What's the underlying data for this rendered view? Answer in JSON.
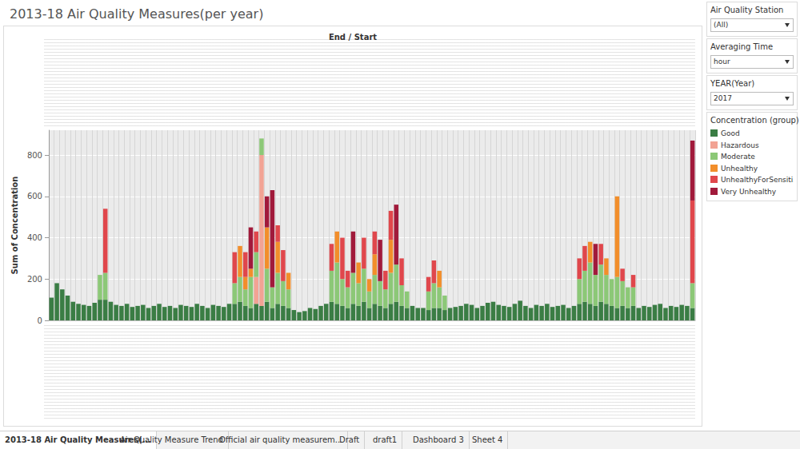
{
  "chart_data": {
    "type": "bar",
    "title": "2013-18 Air Quality Measures(per year)",
    "xlabel": "End / Start",
    "ylabel": "Sum of Concentration",
    "categories": [
      null,
      null,
      null,
      null,
      null,
      null,
      null,
      null,
      null,
      null,
      null,
      null,
      null,
      null,
      null,
      null,
      null,
      null,
      null,
      null,
      null,
      null,
      null,
      null,
      null,
      null,
      null,
      null,
      null,
      null,
      null,
      null,
      null,
      null,
      null,
      null,
      null,
      null,
      null,
      null,
      null,
      null,
      null,
      null,
      null,
      null,
      null,
      null,
      null,
      null,
      null,
      null,
      null,
      null,
      null,
      null,
      null,
      null,
      null,
      null,
      null,
      null,
      null,
      null,
      null,
      null,
      null,
      null,
      null,
      null,
      null,
      null,
      null,
      null,
      null,
      null,
      null,
      null,
      null,
      null,
      null,
      null,
      null,
      null,
      null,
      null,
      null,
      null,
      null,
      null,
      null,
      null,
      null,
      null,
      null,
      null,
      null,
      null,
      null,
      null,
      null,
      null,
      null,
      null,
      null,
      null,
      null,
      null,
      null,
      null,
      null,
      null,
      null,
      null,
      null,
      null,
      null,
      null,
      null,
      null
    ],
    "series": [
      {
        "name": "Good",
        "color": "#3a7d44",
        "values": [
          110,
          180,
          150,
          120,
          90,
          80,
          75,
          70,
          85,
          100,
          100,
          90,
          75,
          70,
          80,
          65,
          70,
          75,
          60,
          70,
          80,
          65,
          70,
          60,
          75,
          70,
          65,
          80,
          70,
          60,
          75,
          70,
          65,
          80,
          80,
          90,
          70,
          60,
          80,
          70,
          90,
          60,
          80,
          70,
          60,
          50,
          40,
          45,
          60,
          55,
          70,
          80,
          90,
          80,
          70,
          60,
          80,
          70,
          90,
          60,
          80,
          70,
          60,
          80,
          90,
          70,
          60,
          70,
          60,
          60,
          50,
          60,
          60,
          50,
          60,
          65,
          70,
          80,
          75,
          60,
          70,
          85,
          90,
          75,
          70,
          65,
          80,
          95,
          70,
          60,
          75,
          70,
          80,
          65,
          70,
          75,
          60,
          70,
          80,
          90,
          80,
          70,
          90,
          80,
          70,
          60,
          70,
          60,
          70,
          60,
          70,
          65,
          75,
          80,
          60,
          70,
          65,
          75,
          70,
          60
        ]
      },
      {
        "name": "Hazardous",
        "color": "#f2a394",
        "values": [
          null,
          null,
          null,
          null,
          null,
          null,
          null,
          null,
          null,
          null,
          null,
          null,
          null,
          null,
          null,
          null,
          null,
          null,
          null,
          null,
          null,
          null,
          null,
          null,
          null,
          null,
          null,
          null,
          null,
          null,
          null,
          null,
          null,
          null,
          null,
          null,
          null,
          null,
          130,
          730,
          null,
          null,
          null,
          null,
          null,
          null,
          null,
          null,
          null,
          null,
          null,
          null,
          null,
          null,
          null,
          null,
          null,
          null,
          null,
          null,
          null,
          null,
          null,
          null,
          null,
          null,
          null,
          null,
          null,
          null,
          null,
          null,
          null,
          null,
          null,
          null,
          null,
          null,
          null,
          null,
          null,
          null,
          null,
          null,
          null,
          null,
          null,
          null,
          null,
          null,
          null,
          null,
          null,
          null,
          null,
          null,
          null,
          null,
          null,
          null,
          null,
          null,
          null,
          null,
          null,
          null,
          null,
          null,
          null,
          null,
          null,
          null,
          null,
          null,
          null,
          null,
          null,
          null,
          null,
          null
        ]
      },
      {
        "name": "Moderate",
        "color": "#8cc877",
        "values": [
          null,
          null,
          null,
          null,
          null,
          null,
          null,
          null,
          null,
          120,
          130,
          null,
          null,
          null,
          null,
          null,
          null,
          null,
          null,
          null,
          null,
          null,
          null,
          null,
          null,
          null,
          null,
          null,
          null,
          null,
          null,
          null,
          null,
          null,
          100,
          120,
          80,
          150,
          120,
          80,
          160,
          100,
          150,
          120,
          90,
          null,
          null,
          null,
          null,
          null,
          null,
          null,
          150,
          200,
          130,
          100,
          150,
          110,
          160,
          80,
          140,
          120,
          90,
          150,
          180,
          100,
          80,
          null,
          null,
          null,
          90,
          120,
          100,
          70,
          null,
          null,
          null,
          null,
          null,
          null,
          null,
          null,
          null,
          null,
          null,
          null,
          null,
          null,
          null,
          null,
          null,
          null,
          null,
          null,
          null,
          null,
          null,
          null,
          120,
          150,
          200,
          150,
          180,
          140,
          130,
          150,
          120,
          100,
          90,
          null,
          null,
          null,
          null,
          null,
          null,
          null,
          null,
          null,
          null,
          120
        ]
      },
      {
        "name": "Unhealthy",
        "color": "#f28e2b",
        "values": [
          null,
          null,
          null,
          null,
          null,
          null,
          null,
          null,
          null,
          null,
          null,
          null,
          null,
          null,
          null,
          null,
          null,
          null,
          null,
          null,
          null,
          null,
          null,
          null,
          null,
          null,
          null,
          null,
          null,
          null,
          null,
          null,
          null,
          null,
          null,
          150,
          60,
          40,
          null,
          null,
          200,
          null,
          150,
          null,
          80,
          null,
          null,
          null,
          null,
          null,
          null,
          null,
          null,
          150,
          null,
          null,
          null,
          100,
          null,
          60,
          100,
          null,
          null,
          160,
          null,
          null,
          null,
          null,
          null,
          null,
          null,
          null,
          80,
          null,
          null,
          null,
          null,
          null,
          null,
          null,
          null,
          null,
          null,
          null,
          null,
          null,
          null,
          null,
          null,
          null,
          null,
          null,
          null,
          null,
          null,
          null,
          null,
          null,
          null,
          null,
          100,
          null,
          null,
          80,
          null,
          390,
          null,
          null,
          null,
          null,
          null,
          null,
          null,
          null,
          null,
          null,
          null,
          null,
          null,
          null
        ]
      },
      {
        "name": "UnhealthyForSensiti...",
        "color": "#e0474c",
        "values": [
          null,
          null,
          null,
          null,
          null,
          null,
          null,
          null,
          null,
          null,
          310,
          null,
          null,
          null,
          null,
          null,
          null,
          null,
          null,
          null,
          null,
          null,
          null,
          null,
          null,
          null,
          null,
          null,
          null,
          null,
          null,
          null,
          null,
          null,
          150,
          null,
          120,
          null,
          100,
          null,
          null,
          null,
          80,
          150,
          null,
          null,
          null,
          null,
          null,
          null,
          null,
          null,
          130,
          null,
          200,
          80,
          null,
          null,
          150,
          null,
          110,
          null,
          90,
          140,
          null,
          130,
          null,
          null,
          null,
          null,
          70,
          110,
          null,
          null,
          null,
          null,
          null,
          null,
          null,
          null,
          null,
          null,
          null,
          null,
          null,
          null,
          null,
          null,
          null,
          null,
          null,
          null,
          null,
          null,
          null,
          null,
          null,
          null,
          100,
          120,
          null,
          null,
          100,
          null,
          null,
          null,
          60,
          null,
          60,
          null,
          null,
          null,
          null,
          null,
          null,
          null,
          null,
          null,
          null,
          400
        ]
      },
      {
        "name": "Very Unhealthy",
        "color": "#a11a3b",
        "values": [
          null,
          null,
          null,
          null,
          null,
          null,
          null,
          null,
          null,
          null,
          null,
          null,
          null,
          null,
          null,
          null,
          null,
          null,
          null,
          null,
          null,
          null,
          null,
          null,
          null,
          null,
          null,
          null,
          null,
          null,
          null,
          null,
          null,
          null,
          null,
          null,
          null,
          200,
          null,
          null,
          150,
          470,
          null,
          null,
          null,
          null,
          null,
          null,
          null,
          null,
          null,
          null,
          null,
          null,
          null,
          null,
          200,
          null,
          null,
          null,
          null,
          200,
          null,
          null,
          290,
          null,
          null,
          null,
          null,
          null,
          null,
          null,
          null,
          null,
          null,
          null,
          null,
          null,
          null,
          null,
          null,
          null,
          null,
          null,
          null,
          null,
          null,
          null,
          null,
          null,
          null,
          null,
          null,
          null,
          null,
          null,
          null,
          null,
          null,
          null,
          null,
          150,
          null,
          null,
          null,
          null,
          null,
          null,
          null,
          null,
          null,
          null,
          null,
          null,
          null,
          null,
          null,
          null,
          null,
          290
        ]
      }
    ],
    "ylim": [
      0,
      920
    ],
    "yticks": [
      0,
      200,
      400,
      600,
      800
    ],
    "grid": true,
    "stacked": true,
    "legend": "right"
  },
  "panel": {
    "filters": [
      {
        "label": "Air Quality Station",
        "value": "(All)"
      },
      {
        "label": "Averaging Time",
        "value": "hour"
      },
      {
        "label": "YEAR(Year)",
        "value": "2017"
      }
    ],
    "legend_title": "Concentration (group)"
  },
  "tabs": [
    "2013-18 Air Quality Measures(...",
    "Air Quality Measure Trend",
    "Official air quality measurem...",
    "Draft",
    "draft1",
    "Dashboard 3",
    "Sheet 4"
  ]
}
